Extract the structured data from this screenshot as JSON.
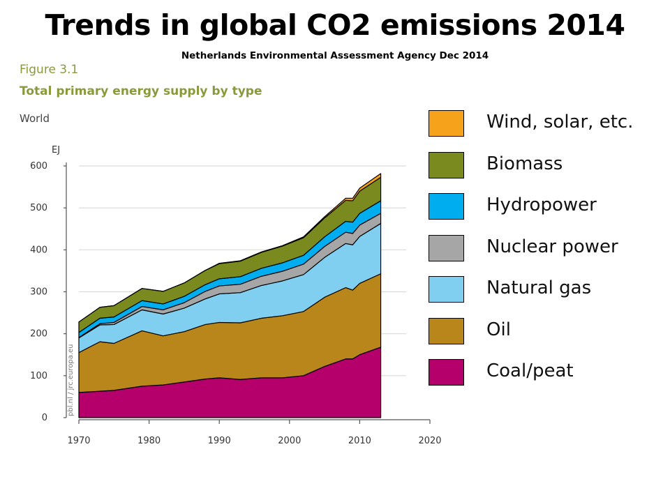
{
  "slide": {
    "title": "Trends in global CO2 emissions 2014",
    "subtitle": "Netherlands Environmental Assessment Agency Dec 2014"
  },
  "figure": {
    "number": "Figure 3.1",
    "title": "Total primary energy supply by type",
    "region": "World",
    "watermark": "pbl.nl / jrc.europa.eu"
  },
  "chart_data": {
    "type": "area",
    "stacked": true,
    "ylabel": "EJ",
    "ylim": [
      0,
      600
    ],
    "xlim": [
      1970,
      2020
    ],
    "yticks": [
      0,
      100,
      200,
      300,
      400,
      500,
      600
    ],
    "xticks": [
      1970,
      1980,
      1990,
      2000,
      2010,
      2020
    ],
    "grid": "horizontal",
    "legend_position": "right",
    "x": [
      1970,
      1973,
      1975,
      1979,
      1982,
      1985,
      1988,
      1990,
      1993,
      1996,
      1999,
      2002,
      2005,
      2008,
      2009,
      2010,
      2013
    ],
    "series": [
      {
        "name": "Coal/peat",
        "color": "#b5006b",
        "values": [
          60,
          63,
          65,
          75,
          78,
          85,
          92,
          95,
          91,
          95,
          95,
          100,
          122,
          140,
          140,
          150,
          168
        ]
      },
      {
        "name": "Oil",
        "color": "#b8861b",
        "values": [
          95,
          118,
          112,
          132,
          117,
          120,
          130,
          132,
          135,
          142,
          148,
          153,
          165,
          170,
          164,
          170,
          175
        ]
      },
      {
        "name": "Natural gas",
        "color": "#80cff0",
        "values": [
          35,
          40,
          45,
          50,
          52,
          56,
          61,
          68,
          72,
          78,
          83,
          88,
          95,
          105,
          108,
          112,
          120
        ]
      },
      {
        "name": "Nuclear power",
        "color": "#a6a6a6",
        "values": [
          1,
          3,
          5,
          8,
          10,
          13,
          18,
          19,
          20,
          22,
          23,
          25,
          26,
          27,
          27,
          27,
          24
        ]
      },
      {
        "name": "Hydropower",
        "color": "#00aeef",
        "values": [
          12,
          13,
          13,
          14,
          14,
          15,
          16,
          17,
          18,
          19,
          20,
          21,
          23,
          26,
          27,
          28,
          30
        ]
      },
      {
        "name": "Biomass",
        "color": "#7a8a1e",
        "values": [
          25,
          26,
          27,
          29,
          30,
          32,
          34,
          36,
          37,
          38,
          40,
          42,
          45,
          50,
          51,
          53,
          56
        ]
      },
      {
        "name": "Wind, solar, etc.",
        "color": "#f7a21b",
        "values": [
          0,
          0,
          0,
          0,
          0,
          0,
          0,
          1,
          1,
          1,
          1,
          2,
          3,
          5,
          6,
          7,
          9
        ]
      }
    ]
  }
}
